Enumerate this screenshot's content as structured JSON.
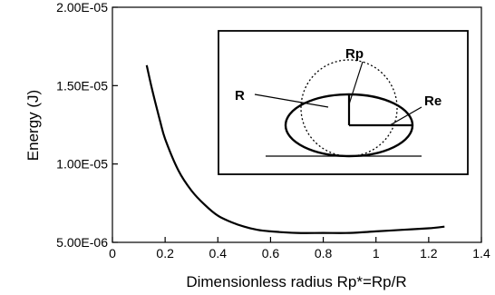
{
  "chart_data": {
    "type": "line",
    "xlabel": "Dimensionless radius Rp*=Rp/R",
    "ylabel": "Energy (J)",
    "xlim": [
      0,
      1.4
    ],
    "ylim": [
      5e-06,
      2e-05
    ],
    "x_ticks": [
      "0",
      "0.2",
      "0.4",
      "0.6",
      "0.8",
      "1",
      "1.2",
      "1.4"
    ],
    "y_ticks": [
      "5.00E-06",
      "1.00E-05",
      "1.50E-05",
      "2.00E-05"
    ],
    "series": [
      {
        "color": "#000000",
        "x": [
          0.13,
          0.15,
          0.18,
          0.2,
          0.25,
          0.3,
          0.35,
          0.4,
          0.45,
          0.5,
          0.55,
          0.6,
          0.7,
          0.8,
          0.9,
          1.0,
          1.1,
          1.2,
          1.26
        ],
        "y": [
          1.63e-05,
          1.48e-05,
          1.28e-05,
          1.16e-05,
          9.6e-06,
          8.3e-06,
          7.4e-06,
          6.7e-06,
          6.3e-06,
          6e-06,
          5.8e-06,
          5.7e-06,
          5.6e-06,
          5.6e-06,
          5.6e-06,
          5.7e-06,
          5.8e-06,
          5.9e-06,
          6e-06
        ]
      }
    ],
    "grid": false,
    "inset": {
      "labels": {
        "rp": "Rp",
        "r": "R",
        "re": "Re"
      }
    }
  }
}
